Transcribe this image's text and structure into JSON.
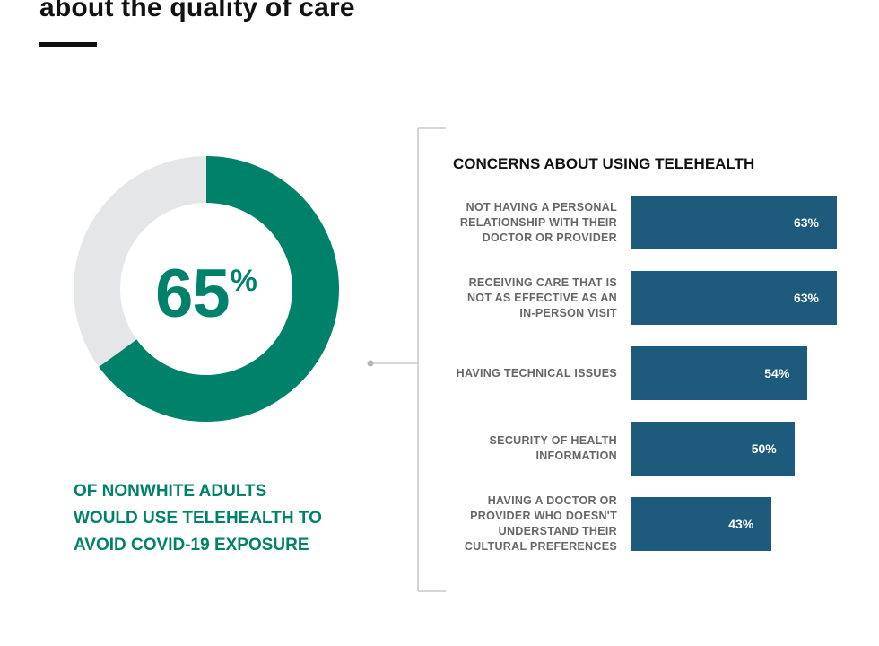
{
  "header": {
    "headline": "about the quality of care"
  },
  "highlight": {
    "value": "65",
    "unit": "%",
    "fraction": 0.65,
    "caption_lines": [
      "OF NONWHITE ADULTS",
      "WOULD USE TELEHEALTH TO",
      "AVOID COVID-19 EXPOSURE"
    ]
  },
  "colors": {
    "accent": "#00816a",
    "donut_remainder": "#e5e6e8",
    "bar": "#1e5a7b",
    "label": "#666666",
    "title": "#111111",
    "bracket": "#c8c8c8"
  },
  "chart_data": {
    "type": "bar",
    "orientation": "horizontal",
    "title": "CONCERNS ABOUT USING TELEHEALTH",
    "categories": [
      [
        "NOT HAVING A PERSONAL",
        "RELATIONSHIP WITH THEIR",
        "DOCTOR OR PROVIDER"
      ],
      [
        "RECEIVING CARE THAT IS",
        "NOT AS EFFECTIVE AS AN",
        "IN-PERSON VISIT"
      ],
      [
        "HAVING TECHNICAL ISSUES"
      ],
      [
        "SECURITY OF HEALTH",
        "INFORMATION"
      ],
      [
        "HAVING A DOCTOR OR",
        "PROVIDER WHO DOESN'T",
        "UNDERSTAND THEIR",
        "CULTURAL PREFERENCES"
      ]
    ],
    "values": [
      63,
      63,
      54,
      50,
      43
    ],
    "value_labels": [
      "63%",
      "63%",
      "54%",
      "50%",
      "43%"
    ],
    "unit": "%",
    "xlim": [
      0,
      63
    ],
    "grid": false
  }
}
